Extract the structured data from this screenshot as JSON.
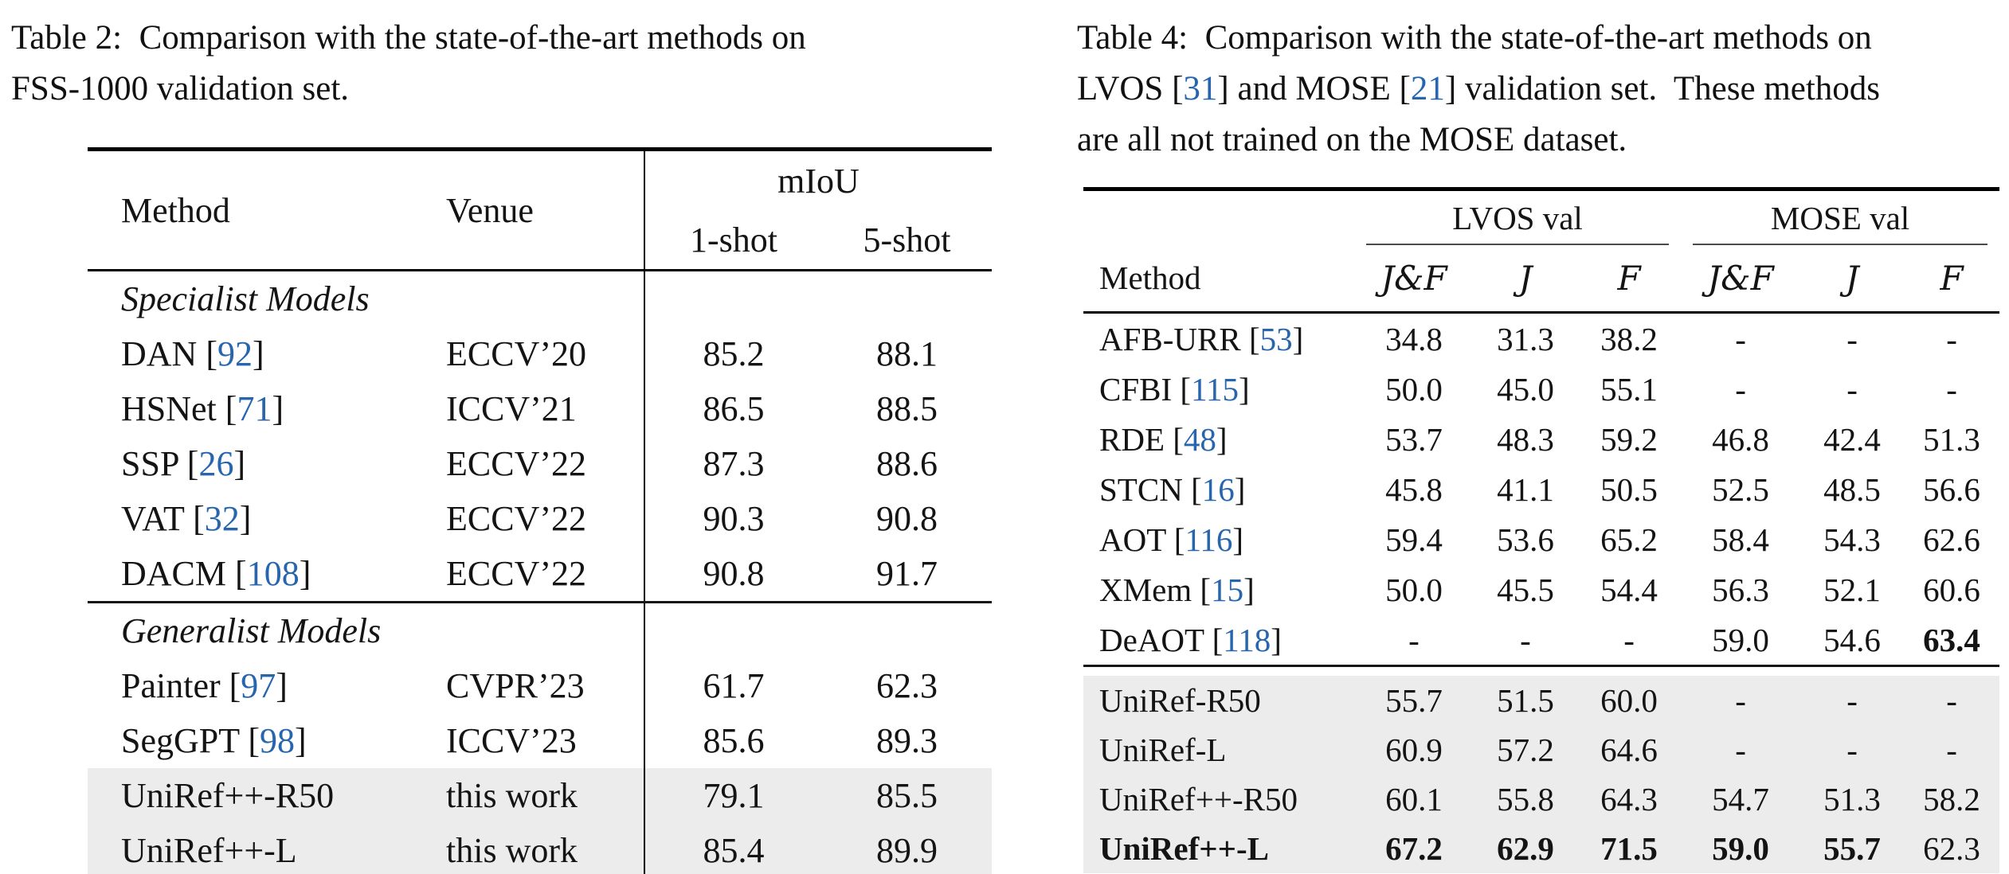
{
  "colors": {
    "citation": "#2766ae",
    "highlight": "#ececec",
    "rule": "#000000",
    "midrule": "#141414",
    "cmidrule": "#4a4a4a"
  },
  "left": {
    "caption_lines": [
      [
        {
          "text": "Table 2:  Comparison with the state-of-the-art methods on"
        }
      ],
      [
        {
          "text": "FSS-1000 validation set."
        }
      ]
    ],
    "table": {
      "col_headers": {
        "method": "Method",
        "venue": "Venue",
        "group": "mIoU",
        "sub": [
          "1-shot",
          "5-shot"
        ]
      },
      "rows": [
        {
          "type": "section",
          "label": "Specialist Models"
        },
        {
          "type": "data",
          "name": "DAN",
          "cite": "92",
          "venue": "ECCV’20",
          "values": [
            "85.2",
            "88.1"
          ]
        },
        {
          "type": "data",
          "name": "HSNet",
          "cite": "71",
          "venue": "ICCV’21",
          "values": [
            "86.5",
            "88.5"
          ]
        },
        {
          "type": "data",
          "name": "SSP",
          "cite": "26",
          "venue": "ECCV’22",
          "values": [
            "87.3",
            "88.6"
          ]
        },
        {
          "type": "data",
          "name": "VAT",
          "cite": "32",
          "venue": "ECCV’22",
          "values": [
            "90.3",
            "90.8"
          ]
        },
        {
          "type": "data",
          "name": "DACM",
          "cite": "108",
          "venue": "ECCV’22",
          "values": [
            "90.8",
            "91.7"
          ]
        },
        {
          "type": "rule"
        },
        {
          "type": "section",
          "label": "Generalist Models"
        },
        {
          "type": "data",
          "name": "Painter",
          "cite": "97",
          "venue": "CVPR’23",
          "values": [
            "61.7",
            "62.3"
          ]
        },
        {
          "type": "data",
          "name": "SegGPT",
          "cite": "98",
          "venue": "ICCV’23",
          "values": [
            "85.6",
            "89.3"
          ]
        },
        {
          "type": "data",
          "name": "UniRef++-R50",
          "venue": "this work",
          "values": [
            "79.1",
            "85.5"
          ],
          "highlight": true
        },
        {
          "type": "data",
          "name": "UniRef++-L",
          "venue": "this work",
          "values": [
            "85.4",
            "89.9"
          ],
          "highlight": true
        }
      ]
    }
  },
  "right": {
    "caption_lines": [
      [
        {
          "text": "Table 4:  Comparison with the state-of-the-art methods on"
        }
      ],
      [
        {
          "text": "LVOS ["
        },
        {
          "cite": "31"
        },
        {
          "text": "] and MOSE ["
        },
        {
          "cite": "21"
        },
        {
          "text": "] validation set.  These methods"
        }
      ],
      [
        {
          "text": "are all not trained on the MOSE dataset."
        }
      ]
    ],
    "table": {
      "method_header": "Method",
      "groups": [
        {
          "label": "LVOS val"
        },
        {
          "label": "MOSE val"
        }
      ],
      "sub_headers": [
        "J&F",
        "J",
        "F",
        "J&F",
        "J",
        "F"
      ],
      "rows": [
        {
          "type": "data",
          "name": "AFB-URR",
          "cite": "53",
          "values": [
            "34.8",
            "31.3",
            "38.2",
            "-",
            "-",
            "-"
          ]
        },
        {
          "type": "data",
          "name": "CFBI",
          "cite": "115",
          "values": [
            "50.0",
            "45.0",
            "55.1",
            "-",
            "-",
            "-"
          ]
        },
        {
          "type": "data",
          "name": "RDE",
          "cite": "48",
          "values": [
            "53.7",
            "48.3",
            "59.2",
            "46.8",
            "42.4",
            "51.3"
          ]
        },
        {
          "type": "data",
          "name": "STCN",
          "cite": "16",
          "values": [
            "45.8",
            "41.1",
            "50.5",
            "52.5",
            "48.5",
            "56.6"
          ]
        },
        {
          "type": "data",
          "name": "AOT",
          "cite": "116",
          "values": [
            "59.4",
            "53.6",
            "65.2",
            "58.4",
            "54.3",
            "62.6"
          ]
        },
        {
          "type": "data",
          "name": "XMem",
          "cite": "15",
          "values": [
            "50.0",
            "45.5",
            "54.4",
            "56.3",
            "52.1",
            "60.6"
          ]
        },
        {
          "type": "data",
          "name": "DeAOT",
          "cite": "118",
          "values": [
            "-",
            "-",
            "-",
            "59.0",
            "54.6",
            "63.4"
          ],
          "bold_values": [
            5
          ]
        },
        {
          "type": "rule"
        },
        {
          "type": "data",
          "name": "UniRef-R50",
          "values": [
            "55.7",
            "51.5",
            "60.0",
            "-",
            "-",
            "-"
          ],
          "highlight": true
        },
        {
          "type": "data",
          "name": "UniRef-L",
          "values": [
            "60.9",
            "57.2",
            "64.6",
            "-",
            "-",
            "-"
          ],
          "highlight": true
        },
        {
          "type": "data",
          "name": "UniRef++-R50",
          "values": [
            "60.1",
            "55.8",
            "64.3",
            "54.7",
            "51.3",
            "58.2"
          ],
          "highlight": true
        },
        {
          "type": "data",
          "name": "UniRef++-L",
          "values": [
            "67.2",
            "62.9",
            "71.5",
            "59.0",
            "55.7",
            "62.3"
          ],
          "highlight": true,
          "bold_name": true,
          "bold_values": [
            0,
            1,
            2,
            3,
            4
          ]
        }
      ]
    }
  }
}
